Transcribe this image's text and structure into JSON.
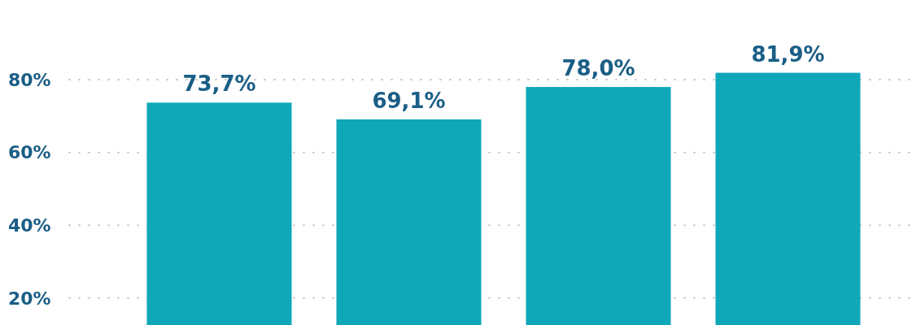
{
  "chart_data": {
    "type": "bar",
    "categories": [
      null,
      null,
      null,
      null
    ],
    "values": [
      73.7,
      69.1,
      78.0,
      81.9
    ],
    "value_labels": [
      "73,7%",
      "69,1%",
      "78,0%",
      "81,9%"
    ],
    "color": "#0ea8b9",
    "ylim": [
      12.6,
      101.9
    ],
    "yticks": [
      {
        "value": 20,
        "label": "20%"
      },
      {
        "value": 40,
        "label": "40%"
      },
      {
        "value": 60,
        "label": "60%"
      },
      {
        "value": 80,
        "label": "80%"
      }
    ],
    "grid": "y",
    "tick_labels": "y"
  }
}
